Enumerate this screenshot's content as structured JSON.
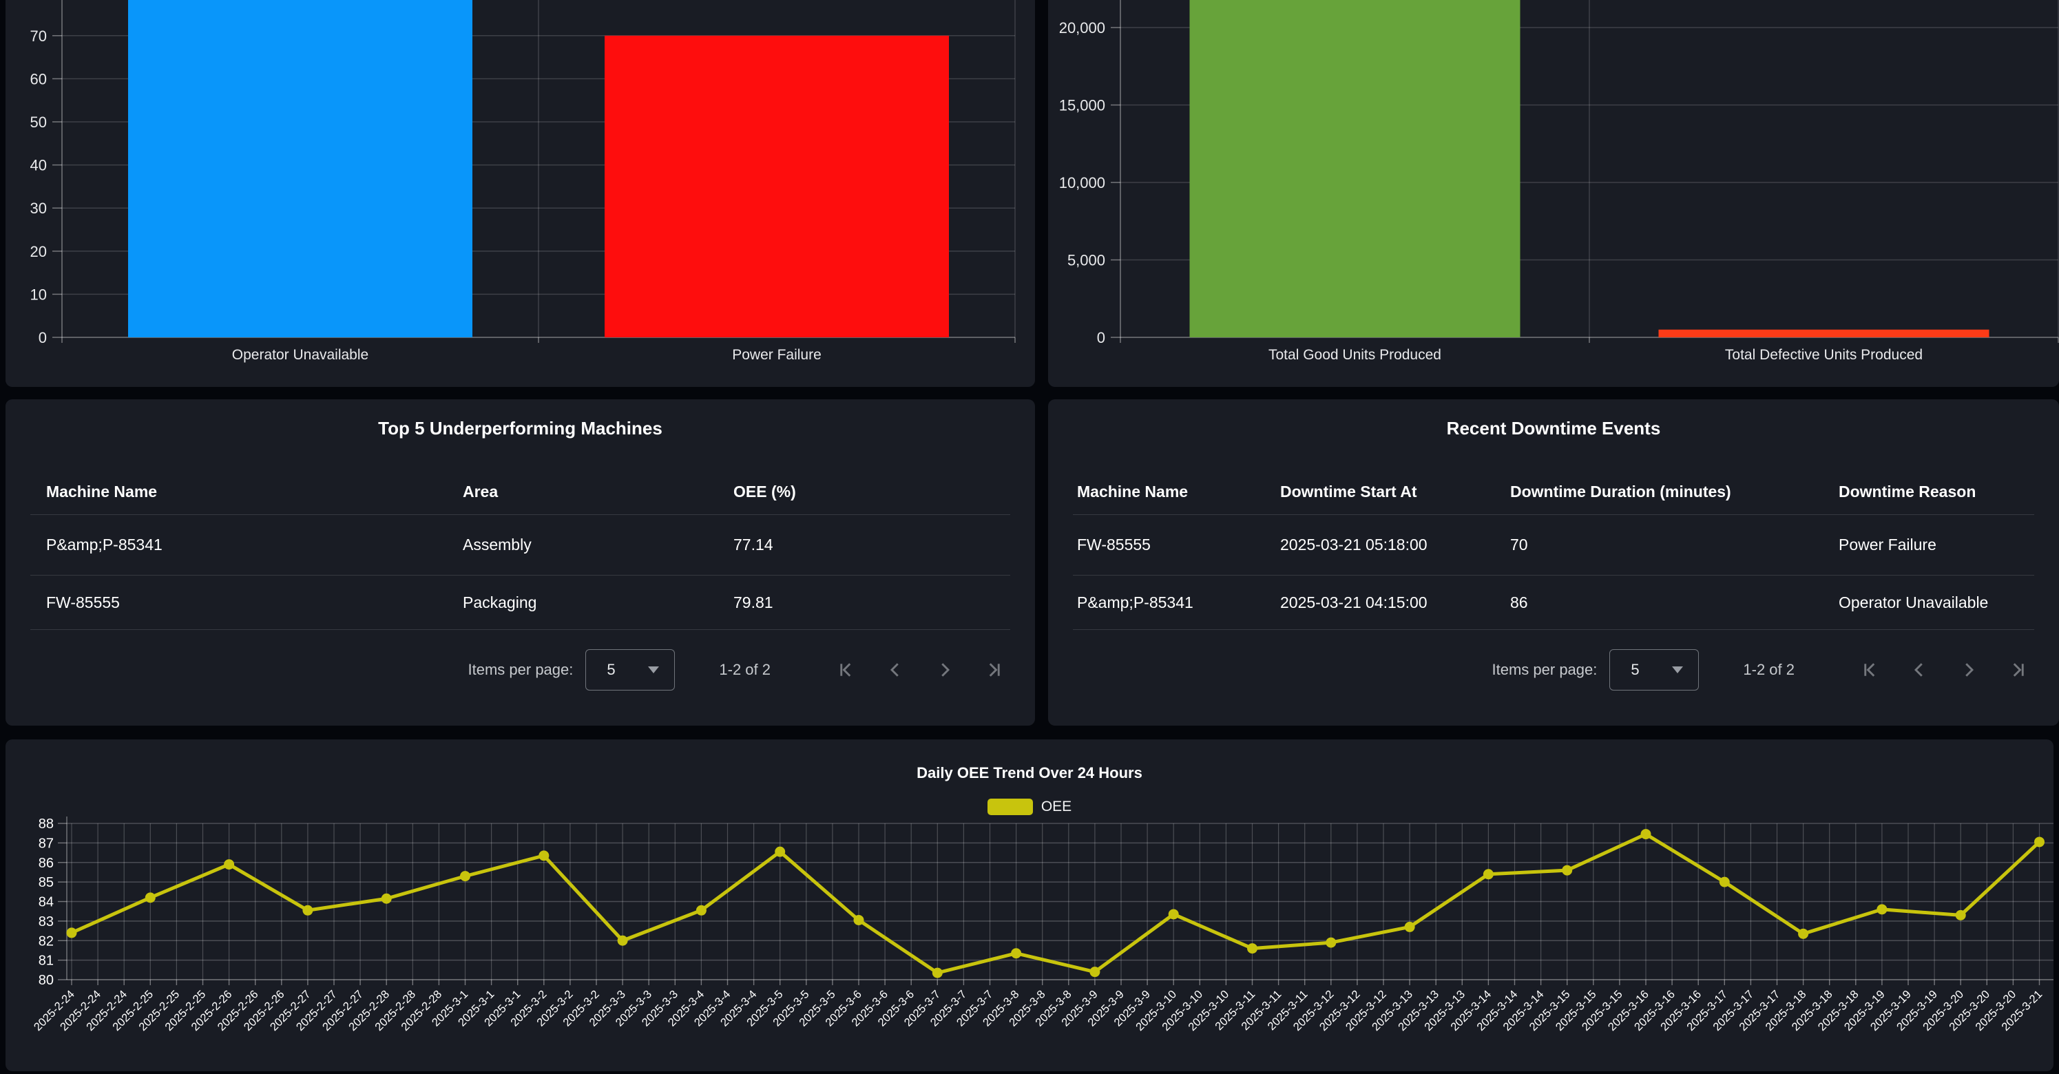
{
  "theme": {
    "page_bg": "#04060b",
    "panel_bg": "#191c24",
    "accent_line": "#c8c40d",
    "bar_blue": "#0996fa",
    "bar_red": "#fe0d0d",
    "bar_green": "#67a33a",
    "bar_orange": "#fd3b17"
  },
  "charts": {
    "downtime_by_reason": {
      "type": "bar",
      "categories": [
        "Operator Unavailable",
        "Power Failure"
      ],
      "values": [
        86,
        70
      ],
      "bar_colors": [
        "#0996fa",
        "#fe0d0d"
      ],
      "y_ticks": [
        0,
        10,
        20,
        30,
        40,
        50,
        60,
        70
      ],
      "y_tick_labels": [
        "0",
        "10",
        "20",
        "30",
        "40",
        "50",
        "60",
        "70"
      ],
      "ylim_visible": [
        0,
        78
      ],
      "clipped_top": true
    },
    "units_produced": {
      "type": "bar",
      "categories": [
        "Total Good Units Produced",
        "Total Defective Units Produced"
      ],
      "values": [
        22500,
        500
      ],
      "bar_colors": [
        "#67a33a",
        "#fd3b17"
      ],
      "y_ticks": [
        0,
        5000,
        10000,
        15000,
        20000
      ],
      "y_tick_labels": [
        "0",
        "5,000",
        "10,000",
        "15,000",
        "20,000"
      ],
      "ylim_visible": [
        0,
        21800
      ],
      "clipped_top": true
    },
    "oee_trend": {
      "type": "line",
      "title": "Daily OEE Trend Over 24 Hours",
      "legend": [
        "OEE"
      ],
      "line_color": "#c8c40d",
      "label_repeat": 3,
      "dates": [
        "2025-2-24",
        "2025-2-25",
        "2025-2-26",
        "2025-2-27",
        "2025-2-28",
        "2025-3-1",
        "2025-3-2",
        "2025-3-3",
        "2025-3-4",
        "2025-3-5",
        "2025-3-6",
        "2025-3-7",
        "2025-3-8",
        "2025-3-9",
        "2025-3-10",
        "2025-3-11",
        "2025-3-12",
        "2025-3-13",
        "2025-3-14",
        "2025-3-15",
        "2025-3-16",
        "2025-3-17",
        "2025-3-18",
        "2025-3-19",
        "2025-3-20",
        "2025-3-21"
      ],
      "values": [
        82.4,
        84.2,
        85.9,
        83.55,
        84.15,
        85.3,
        86.35,
        82.0,
        83.55,
        86.55,
        83.05,
        80.35,
        81.35,
        80.4,
        83.35,
        81.6,
        81.9,
        82.7,
        85.4,
        85.6,
        87.45,
        85.0,
        82.35,
        83.6,
        83.3,
        87.05
      ],
      "y_ticks": [
        80,
        81,
        82,
        83,
        84,
        85,
        86,
        87,
        88
      ],
      "ylim": [
        80,
        88
      ]
    }
  },
  "tables": {
    "underperforming": {
      "title": "Top 5 Underperforming Machines",
      "columns": [
        "Machine Name",
        "Area",
        "OEE (%)"
      ],
      "rows": [
        [
          "P&amp;P-85341",
          "Assembly",
          "77.14"
        ],
        [
          "FW-85555",
          "Packaging",
          "79.81"
        ]
      ],
      "paginator": {
        "items_per_page_label": "Items per page:",
        "page_size": "5",
        "range_label": "1-2 of 2"
      }
    },
    "downtime_events": {
      "title": "Recent Downtime Events",
      "columns": [
        "Machine Name",
        "Downtime Start At",
        "Downtime Duration (minutes)",
        "Downtime Reason"
      ],
      "rows": [
        [
          "FW-85555",
          "2025-03-21 05:18:00",
          "70",
          "Power Failure"
        ],
        [
          "P&amp;P-85341",
          "2025-03-21 04:15:00",
          "86",
          "Operator Unavailable"
        ]
      ],
      "paginator": {
        "items_per_page_label": "Items per page:",
        "page_size": "5",
        "range_label": "1-2 of 2"
      }
    }
  }
}
